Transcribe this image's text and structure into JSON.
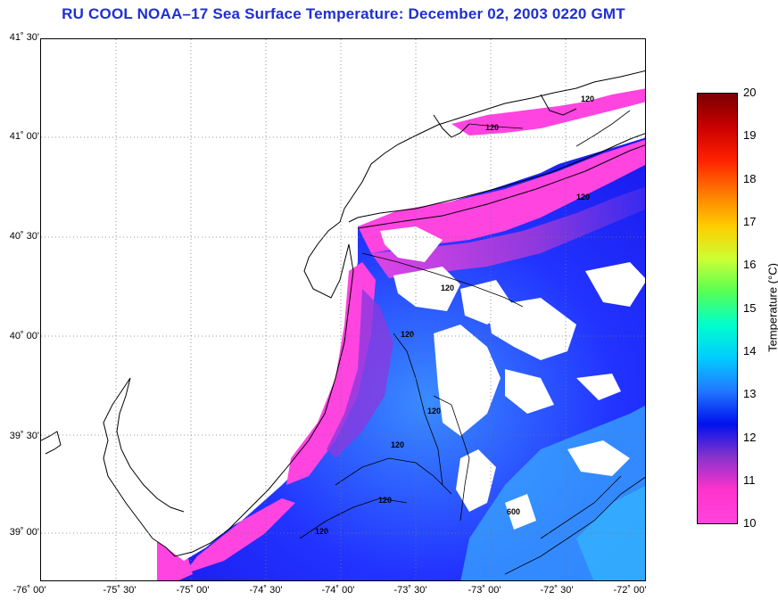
{
  "title": "RU COOL  NOAA–17  Sea Surface Temperature:  December 02, 2003 0220 GMT",
  "latitude_labels": [
    "41˚ 30'",
    "41˚ 00'",
    "40˚ 30'",
    "40˚ 00'",
    "39˚ 30'",
    "39˚ 00'"
  ],
  "longitude_labels": [
    "-76˚ 00'",
    "-75˚ 30'",
    "-75˚ 00'",
    "-74˚ 30'",
    "-74˚ 00'",
    "-73˚ 30'",
    "-73˚ 00'",
    "-72˚ 30'",
    "-72˚ 00'"
  ],
  "contour_labels": [
    "120",
    "120",
    "120",
    "120",
    "120",
    "120",
    "120",
    "120",
    "120",
    "600"
  ],
  "colorbar": {
    "title": "Temperature (°C)",
    "ticks": [
      "20",
      "19",
      "18",
      "17",
      "16",
      "15",
      "14",
      "13",
      "12",
      "11",
      "10"
    ],
    "colors": [
      "#7a0000",
      "#c80000",
      "#ff2000",
      "#ff7a00",
      "#ffcc00",
      "#ccff33",
      "#55ff55",
      "#00ffcc",
      "#00ccff",
      "#2277ff",
      "#0011ee",
      "#8833cc",
      "#ff33cc",
      "#ff44dd"
    ]
  },
  "palette": {
    "land": "#ffffff",
    "coast": "#000000",
    "cool_pink": "#ff44e0",
    "blue": "#2b3bff",
    "light_blue": "#3a9cff",
    "grid": "#777777"
  }
}
